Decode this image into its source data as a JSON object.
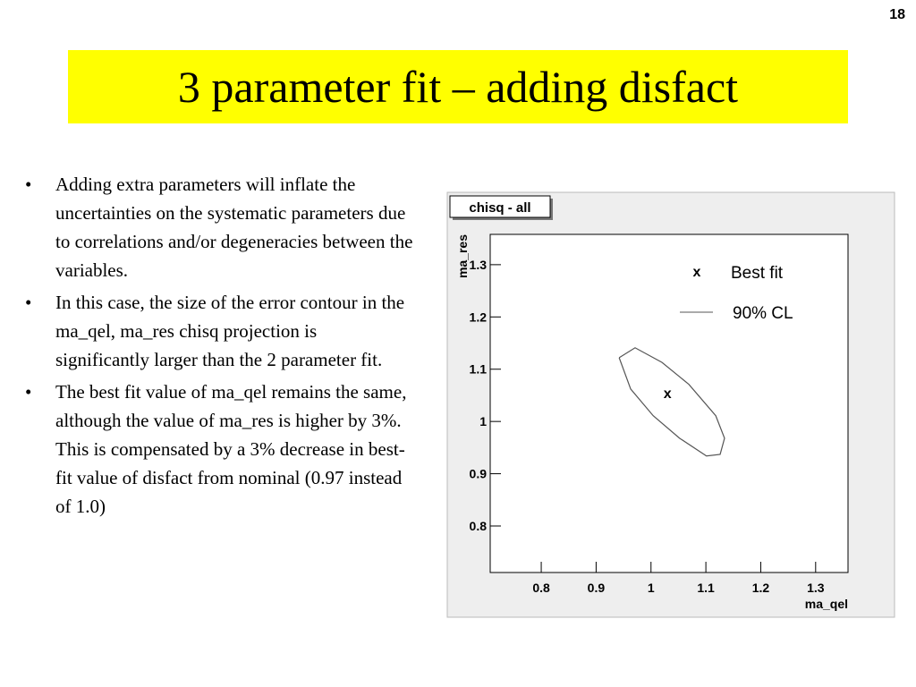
{
  "page_number": "18",
  "title": "3 parameter fit – adding disfact",
  "bullets": [
    "Adding extra parameters will inflate the uncertainties on the systematic parameters due to correlations and/or degeneracies between the variables.",
    "In this case, the size of the error contour in the ma_qel, ma_res chisq projection is significantly larger than the 2 parameter fit.",
    "The best fit value of ma_qel remains the same, although the value of ma_res is higher by 3%. This is compensated by a 3% decrease in best-fit value of disfact from nominal (0.97 instead of 1.0)"
  ],
  "chart_data": {
    "type": "contour",
    "title": "chisq - all",
    "x_label": "ma_qel",
    "y_label": "ma_res",
    "xlim": [
      0.707,
      1.359
    ],
    "ylim": [
      0.711,
      1.358
    ],
    "xticks": [
      0.8,
      0.9,
      1,
      1.1,
      1.2,
      1.3
    ],
    "yticks": [
      0.8,
      0.9,
      1,
      1.1,
      1.2,
      1.3
    ],
    "series": [
      {
        "name": "Best fit",
        "marker": "x",
        "color": "#000000",
        "x": [
          1.03
        ],
        "values": [
          1.053
        ]
      },
      {
        "name": "90% CL",
        "color": "#555555",
        "x": [
          0.942,
          0.971,
          1.02,
          1.069,
          1.118,
          1.134,
          1.126,
          1.101,
          1.052,
          1.004,
          0.963,
          0.942
        ],
        "values": [
          1.122,
          1.141,
          1.113,
          1.071,
          1.011,
          0.968,
          0.937,
          0.934,
          0.968,
          1.011,
          1.062,
          1.122
        ]
      }
    ]
  }
}
